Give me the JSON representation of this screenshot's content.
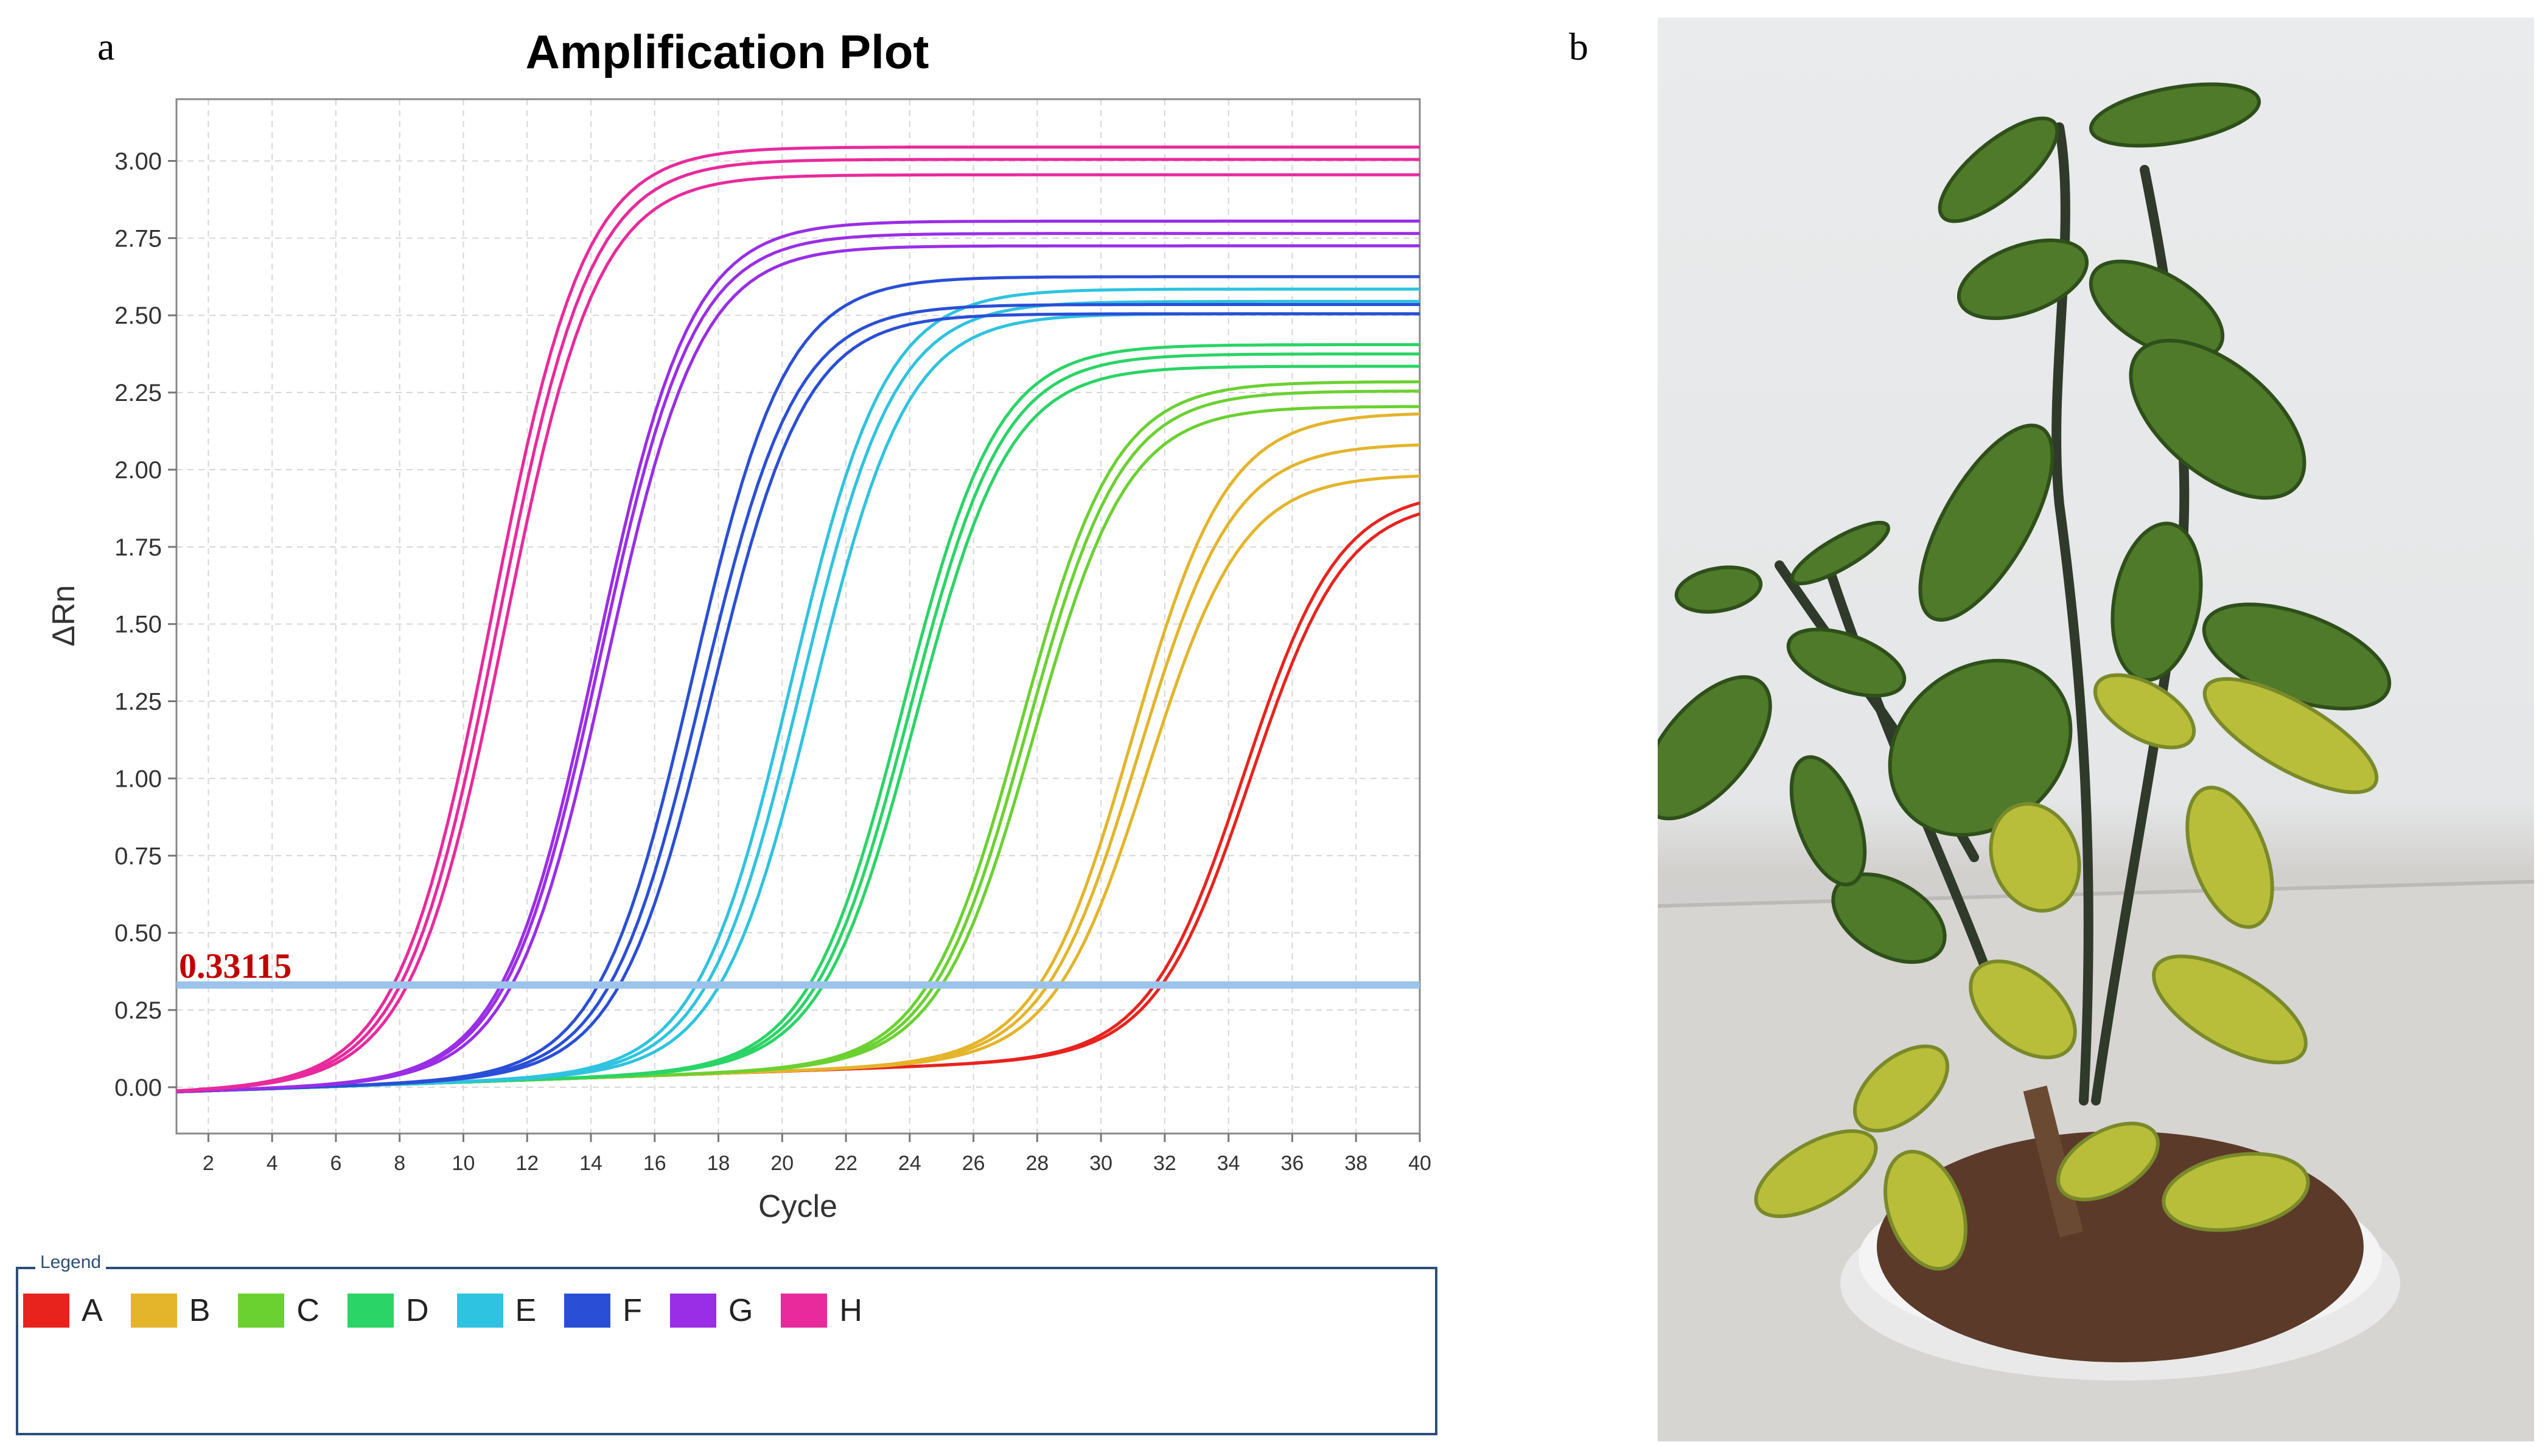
{
  "panels": {
    "a": "a",
    "b": "b"
  },
  "chart_data": {
    "type": "line",
    "title": "Amplification Plot",
    "xlabel": "Cycle",
    "ylabel": "ΔRn",
    "xlim": [
      1,
      40
    ],
    "ylim": [
      -0.15,
      3.2
    ],
    "x_ticks": [
      "2",
      "4",
      "6",
      "8",
      "10",
      "12",
      "14",
      "16",
      "18",
      "20",
      "22",
      "24",
      "26",
      "28",
      "30",
      "32",
      "34",
      "36",
      "38",
      "40"
    ],
    "y_ticks": [
      "0.00",
      "0.25",
      "0.50",
      "0.75",
      "1.00",
      "1.25",
      "1.50",
      "1.75",
      "2.00",
      "2.25",
      "2.50",
      "2.75",
      "3.00"
    ],
    "grid": true,
    "threshold": {
      "value": 0.33115,
      "label": "0.33115",
      "color": "#9cc3ec"
    },
    "series": [
      {
        "name": "A",
        "color": "#e8231e",
        "midpoints": [
          34.5,
          34.7
        ],
        "plateaus": [
          1.95,
          1.92
        ]
      },
      {
        "name": "B",
        "color": "#e4b42a",
        "midpoints": [
          31.0,
          31.2,
          31.5
        ],
        "plateaus": [
          2.2,
          2.1,
          2.0
        ]
      },
      {
        "name": "C",
        "color": "#6bd131",
        "midpoints": [
          27.5,
          27.7,
          27.9
        ],
        "plateaus": [
          2.3,
          2.27,
          2.22
        ]
      },
      {
        "name": "D",
        "color": "#2ad466",
        "midpoints": [
          23.8,
          24.0,
          24.2
        ],
        "plateaus": [
          2.42,
          2.39,
          2.35
        ]
      },
      {
        "name": "E",
        "color": "#2ec3e0",
        "midpoints": [
          20.3,
          20.6,
          21.0
        ],
        "plateaus": [
          2.6,
          2.56,
          2.52
        ]
      },
      {
        "name": "F",
        "color": "#2a4fd6",
        "midpoints": [
          17.2,
          17.5,
          17.8
        ],
        "plateaus": [
          2.64,
          2.55,
          2.52
        ]
      },
      {
        "name": "G",
        "color": "#9a2ee6",
        "midpoints": [
          14.2,
          14.3,
          14.5
        ],
        "plateaus": [
          2.82,
          2.78,
          2.74
        ]
      },
      {
        "name": "H",
        "color": "#e82a9c",
        "midpoints": [
          10.9,
          11.1,
          11.3
        ],
        "plateaus": [
          3.06,
          3.02,
          2.97
        ]
      }
    ]
  },
  "legend": {
    "title": "Legend",
    "items": [
      {
        "label": "A",
        "color": "#e8231e"
      },
      {
        "label": "B",
        "color": "#e4b42a"
      },
      {
        "label": "C",
        "color": "#6bd131"
      },
      {
        "label": "D",
        "color": "#2ad466"
      },
      {
        "label": "E",
        "color": "#2ec3e0"
      },
      {
        "label": "F",
        "color": "#2a4fd6"
      },
      {
        "label": "G",
        "color": "#9a2ee6"
      },
      {
        "label": "H",
        "color": "#e82a9c"
      }
    ]
  },
  "photo": {
    "subject": "potted citrus seedling with yellowing leaves"
  }
}
